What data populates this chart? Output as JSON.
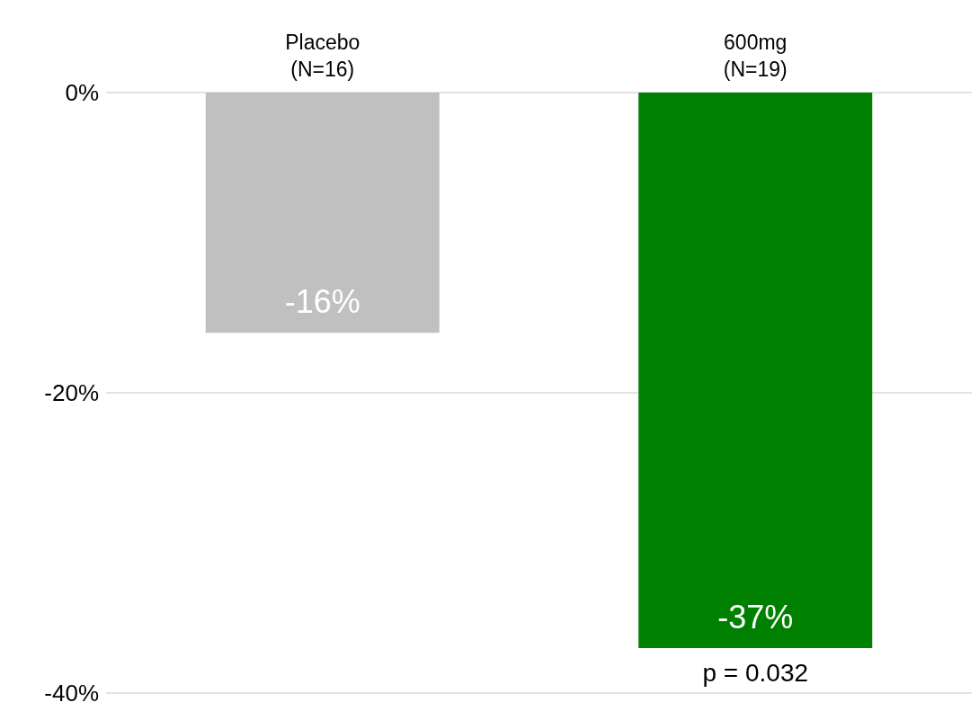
{
  "chart_data": {
    "type": "bar",
    "categories": [
      "Placebo\n(N=16)",
      "600mg\n(N=19)"
    ],
    "values": [
      -16,
      -37
    ],
    "colors": [
      "#c0c0c0",
      "#008000"
    ],
    "value_labels": [
      "-16%",
      "-37%"
    ],
    "ylim": [
      -40,
      0
    ],
    "yticks": [
      {
        "value": 0,
        "label": "0%"
      },
      {
        "value": -20,
        "label": "-20%"
      },
      {
        "value": -40,
        "label": "-40%"
      }
    ],
    "grid": "y",
    "annotations": [
      {
        "text": "p = 0.032",
        "x": "600mg\n(N=19)",
        "y": -37
      }
    ]
  }
}
